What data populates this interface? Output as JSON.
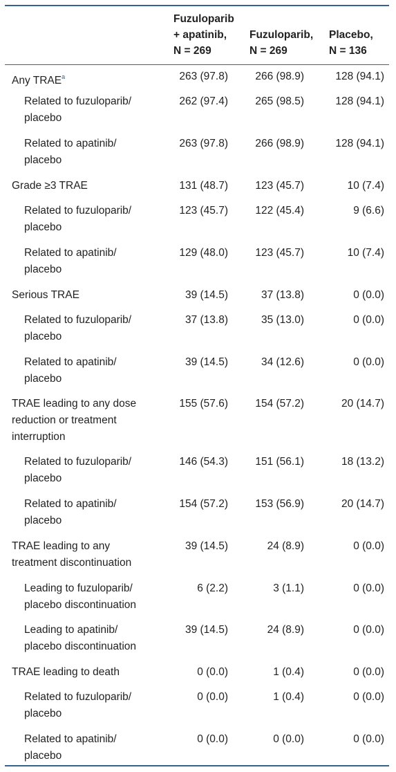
{
  "header": {
    "col1": [
      "Fuzuloparib",
      "+ apatinib,",
      "N = 269"
    ],
    "col2": [
      "Fuzuloparib,",
      "N = 269"
    ],
    "col3": [
      "Placebo,",
      "N = 136"
    ]
  },
  "footnote_marker": "a",
  "rows": [
    {
      "label": [
        "Any TRAE"
      ],
      "sup": true,
      "v": [
        "263 (97.8)",
        "266 (98.9)",
        "128 (94.1)"
      ],
      "sub": false
    },
    {
      "label": [
        "Related to fuzuloparib/",
        "placebo"
      ],
      "v": [
        "262 (97.4)",
        "265 (98.5)",
        "128 (94.1)"
      ],
      "sub": true
    },
    {
      "label": [
        "Related to apatinib/",
        "placebo"
      ],
      "v": [
        "263 (97.8)",
        "266 (98.9)",
        "128 (94.1)"
      ],
      "sub": true
    },
    {
      "label": [
        "Grade ≥3 TRAE"
      ],
      "v": [
        "131 (48.7)",
        "123 (45.7)",
        "10 (7.4)"
      ],
      "sub": false
    },
    {
      "label": [
        "Related to fuzuloparib/",
        "placebo"
      ],
      "v": [
        "123 (45.7)",
        "122 (45.4)",
        "9 (6.6)"
      ],
      "sub": true
    },
    {
      "label": [
        "Related to apatinib/",
        "placebo"
      ],
      "v": [
        "129 (48.0)",
        "123 (45.7)",
        "10 (7.4)"
      ],
      "sub": true
    },
    {
      "label": [
        "Serious TRAE"
      ],
      "v": [
        "39 (14.5)",
        "37 (13.8)",
        "0 (0.0)"
      ],
      "sub": false
    },
    {
      "label": [
        "Related to fuzuloparib/",
        "placebo"
      ],
      "v": [
        "37 (13.8)",
        "35 (13.0)",
        "0 (0.0)"
      ],
      "sub": true
    },
    {
      "label": [
        "Related to apatinib/",
        "placebo"
      ],
      "v": [
        "39 (14.5)",
        "34 (12.6)",
        "0 (0.0)"
      ],
      "sub": true
    },
    {
      "label": [
        "TRAE leading to any dose",
        "reduction or treatment",
        "interruption"
      ],
      "v": [
        "155 (57.6)",
        "154 (57.2)",
        "20 (14.7)"
      ],
      "sub": false
    },
    {
      "label": [
        "Related to fuzuloparib/",
        "placebo"
      ],
      "v": [
        "146 (54.3)",
        "151 (56.1)",
        "18 (13.2)"
      ],
      "sub": true
    },
    {
      "label": [
        "Related to apatinib/",
        "placebo"
      ],
      "v": [
        "154 (57.2)",
        "153 (56.9)",
        "20 (14.7)"
      ],
      "sub": true
    },
    {
      "label": [
        "TRAE leading to any",
        "treatment discontinuation"
      ],
      "v": [
        "39 (14.5)",
        "24 (8.9)",
        "0 (0.0)"
      ],
      "sub": false
    },
    {
      "label": [
        "Leading to fuzuloparib/",
        "placebo discontinuation"
      ],
      "v": [
        "6 (2.2)",
        "3 (1.1)",
        "0 (0.0)"
      ],
      "sub": true
    },
    {
      "label": [
        "Leading to apatinib/",
        "placebo discontinuation"
      ],
      "v": [
        "39 (14.5)",
        "24 (8.9)",
        "0 (0.0)"
      ],
      "sub": true
    },
    {
      "label": [
        "TRAE leading to death"
      ],
      "v": [
        "0 (0.0)",
        "1 (0.4)",
        "0 (0.0)"
      ],
      "sub": false
    },
    {
      "label": [
        "Related to fuzuloparib/",
        "placebo"
      ],
      "v": [
        "0 (0.0)",
        "1 (0.4)",
        "0 (0.0)"
      ],
      "sub": true
    },
    {
      "label": [
        "Related to apatinib/",
        "placebo"
      ],
      "v": [
        "0 (0.0)",
        "0 (0.0)",
        "0 (0.0)"
      ],
      "sub": true
    }
  ]
}
